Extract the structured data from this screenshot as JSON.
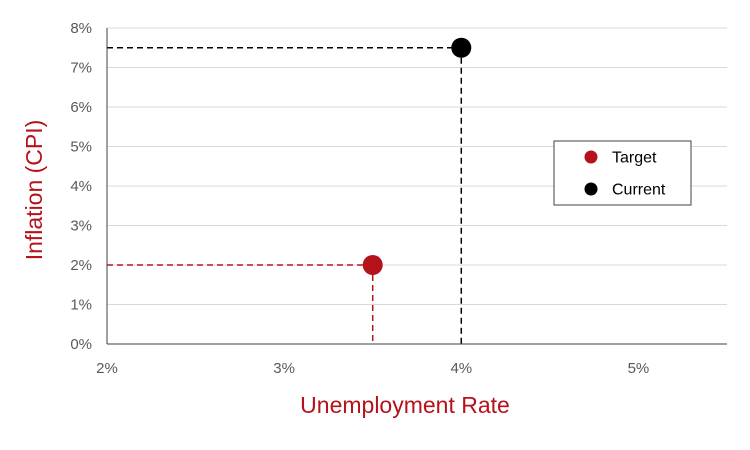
{
  "chart_data": {
    "type": "scatter",
    "xlabel": "Unemployment Rate",
    "ylabel": "Inflation (CPI)",
    "xlim": [
      2,
      5.5
    ],
    "ylim": [
      0,
      8
    ],
    "x_ticks": [
      2,
      3,
      4,
      5
    ],
    "x_tick_labels": [
      "2%",
      "3%",
      "4%",
      "5%"
    ],
    "y_ticks": [
      0,
      1,
      2,
      3,
      4,
      5,
      6,
      7,
      8
    ],
    "y_tick_labels": [
      "0%",
      "1%",
      "2%",
      "3%",
      "4%",
      "5%",
      "6%",
      "7%",
      "8%"
    ],
    "grid": "horizontal",
    "legend_position": "right",
    "series": [
      {
        "name": "Target",
        "x": [
          3.5
        ],
        "y": [
          2.0
        ],
        "color": "#b5121b",
        "guides": "dashed"
      },
      {
        "name": "Current",
        "x": [
          4.0
        ],
        "y": [
          7.5
        ],
        "color": "#000000",
        "guides": "dashed"
      }
    ],
    "label_color": "#b5121b"
  }
}
